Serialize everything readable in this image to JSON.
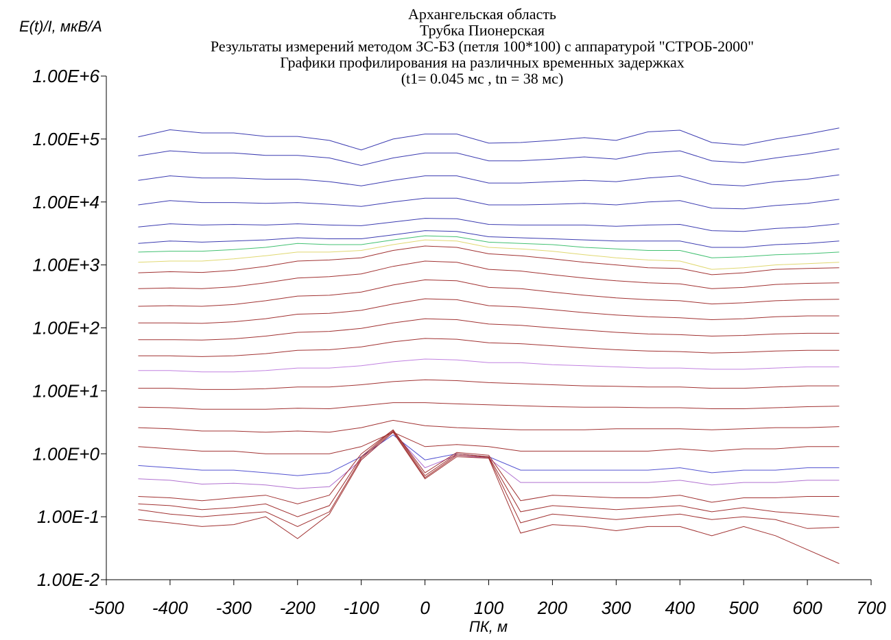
{
  "chart_data": {
    "type": "line",
    "title": [
      "Архангельская область",
      "Трубка Пионерская",
      "Результаты измерений методом ЗС-БЗ (петля 100*100) с аппаратурой \"СТРОБ-2000\"",
      "Графики профилирования на различных временных задержках",
      "(t1= 0.045 мс , tn = 38 мс)"
    ],
    "y_label": "E(t)/I, мкВ/А",
    "x_label": "ПК, м",
    "log_y": true,
    "xlim": [
      -500,
      700
    ],
    "xticks": [
      -500,
      -400,
      -300,
      -200,
      -100,
      0,
      100,
      200,
      300,
      400,
      500,
      600,
      700
    ],
    "ylim": [
      0.01,
      1000000
    ],
    "yticks": [
      {
        "value": 0.01,
        "label": "1.00E-2"
      },
      {
        "value": 0.1,
        "label": "1.00E-1"
      },
      {
        "value": 1,
        "label": "1.00E+0"
      },
      {
        "value": 10,
        "label": "1.00E+1"
      },
      {
        "value": 100,
        "label": "1.00E+2"
      },
      {
        "value": 1000,
        "label": "1.00E+3"
      },
      {
        "value": 10000,
        "label": "1.00E+4"
      },
      {
        "value": 100000,
        "label": "1.00E+5"
      },
      {
        "value": 1000000,
        "label": "1.00E+6"
      }
    ],
    "x": [
      -450,
      -400,
      -350,
      -300,
      -250,
      -200,
      -150,
      -100,
      -50,
      0,
      50,
      100,
      150,
      200,
      250,
      300,
      350,
      400,
      450,
      500,
      550,
      600,
      650
    ],
    "series": [
      {
        "color": "#3a3ab0",
        "values": [
          108000,
          140000,
          125000,
          125000,
          110000,
          110000,
          95000,
          67000,
          100000,
          120000,
          120000,
          86000,
          88000,
          95000,
          105000,
          95000,
          130000,
          138000,
          88000,
          80000,
          100000,
          120000,
          150000
        ]
      },
      {
        "color": "#3a3ab0",
        "values": [
          54000,
          65000,
          60000,
          60000,
          55000,
          55000,
          50000,
          38000,
          50000,
          60000,
          60000,
          45000,
          45000,
          48000,
          52000,
          48000,
          60000,
          65000,
          45000,
          42000,
          50000,
          58000,
          70000
        ]
      },
      {
        "color": "#3a3ab0",
        "values": [
          22000,
          26000,
          24000,
          24000,
          23000,
          23000,
          21000,
          18000,
          22000,
          26000,
          26000,
          20000,
          20000,
          21000,
          22000,
          21000,
          24000,
          26000,
          19000,
          18000,
          21000,
          23000,
          27000
        ]
      },
      {
        "color": "#3a3ab0",
        "values": [
          9000,
          10500,
          9800,
          9800,
          9500,
          9800,
          9200,
          8500,
          10000,
          11500,
          11500,
          9000,
          9000,
          9200,
          9500,
          9000,
          10000,
          10500,
          8000,
          7800,
          8800,
          9500,
          11000
        ]
      },
      {
        "color": "#3a3ab0",
        "values": [
          4000,
          4500,
          4300,
          4400,
          4300,
          4500,
          4300,
          4200,
          4800,
          5500,
          5400,
          4400,
          4300,
          4300,
          4300,
          4100,
          4300,
          4400,
          3500,
          3400,
          3800,
          4000,
          4500
        ]
      },
      {
        "color": "#3a3ab0",
        "values": [
          2200,
          2400,
          2300,
          2400,
          2500,
          2700,
          2600,
          2600,
          3000,
          3500,
          3400,
          2800,
          2700,
          2600,
          2500,
          2400,
          2400,
          2400,
          1900,
          1900,
          2100,
          2200,
          2400
        ]
      },
      {
        "color": "#40c070",
        "values": [
          1600,
          1650,
          1650,
          1750,
          1900,
          2200,
          2100,
          2100,
          2500,
          2900,
          2800,
          2300,
          2200,
          2100,
          1900,
          1800,
          1700,
          1700,
          1300,
          1350,
          1450,
          1500,
          1600
        ]
      },
      {
        "color": "#e0d870",
        "values": [
          1100,
          1150,
          1150,
          1250,
          1400,
          1600,
          1600,
          1700,
          2100,
          2500,
          2400,
          1900,
          1800,
          1650,
          1450,
          1300,
          1200,
          1150,
          850,
          900,
          1000,
          1050,
          1100
        ]
      },
      {
        "color": "#a03030",
        "values": [
          750,
          780,
          760,
          820,
          950,
          1150,
          1200,
          1300,
          1700,
          2000,
          1900,
          1500,
          1400,
          1250,
          1100,
          1000,
          900,
          880,
          700,
          750,
          850,
          880,
          900
        ]
      },
      {
        "color": "#a03030",
        "values": [
          420,
          430,
          420,
          450,
          520,
          620,
          650,
          720,
          950,
          1150,
          1100,
          850,
          800,
          700,
          620,
          560,
          520,
          500,
          420,
          440,
          490,
          510,
          520
        ]
      },
      {
        "color": "#a03030",
        "values": [
          220,
          225,
          220,
          235,
          270,
          320,
          330,
          370,
          480,
          580,
          560,
          440,
          420,
          370,
          330,
          300,
          280,
          270,
          240,
          250,
          270,
          280,
          285
        ]
      },
      {
        "color": "#a03030",
        "values": [
          120,
          120,
          118,
          125,
          140,
          165,
          170,
          190,
          240,
          290,
          280,
          225,
          215,
          195,
          175,
          160,
          150,
          145,
          135,
          140,
          150,
          155,
          155
        ]
      },
      {
        "color": "#a03030",
        "values": [
          65,
          65,
          64,
          67,
          74,
          85,
          88,
          98,
          120,
          140,
          135,
          115,
          110,
          100,
          92,
          85,
          80,
          78,
          74,
          76,
          80,
          82,
          82
        ]
      },
      {
        "color": "#a03030",
        "values": [
          36,
          36,
          35,
          36,
          39,
          44,
          45,
          50,
          60,
          68,
          66,
          58,
          56,
          52,
          48,
          45,
          43,
          42,
          40,
          41,
          43,
          44,
          44
        ]
      },
      {
        "color": "#c080e0",
        "values": [
          21,
          21,
          20,
          20,
          21,
          23,
          23,
          25,
          29,
          32,
          31,
          28,
          28,
          26,
          25,
          24,
          23,
          23,
          22,
          22,
          23,
          24,
          24
        ]
      },
      {
        "color": "#a03030",
        "values": [
          11,
          11,
          10.5,
          10.5,
          10.8,
          11.5,
          11.5,
          12.5,
          14,
          15,
          14.5,
          13.5,
          13,
          12.5,
          12,
          11.8,
          11.5,
          11.5,
          11,
          11,
          11.5,
          12,
          12
        ]
      },
      {
        "color": "#a03030",
        "values": [
          5.5,
          5.4,
          5.1,
          5.1,
          5.1,
          5.3,
          5.2,
          5.8,
          6.5,
          6.5,
          6.2,
          6,
          5.8,
          5.6,
          5.5,
          5.5,
          5.4,
          5.4,
          5.2,
          5.2,
          5.4,
          5.6,
          5.7
        ]
      },
      {
        "color": "#a03030",
        "values": [
          2.6,
          2.5,
          2.3,
          2.3,
          2.2,
          2.3,
          2.2,
          2.6,
          3.4,
          2.8,
          2.6,
          2.5,
          2.4,
          2.4,
          2.4,
          2.5,
          2.5,
          2.5,
          2.4,
          2.5,
          2.6,
          2.6,
          2.7
        ]
      },
      {
        "color": "#a03030",
        "values": [
          1.3,
          1.2,
          1.1,
          1.1,
          1,
          1,
          1,
          1.3,
          2.2,
          1.3,
          1.4,
          1.3,
          1.1,
          1.1,
          1.1,
          1.1,
          1.1,
          1.2,
          1.1,
          1.2,
          1.2,
          1.3,
          1.3
        ]
      },
      {
        "color": "#5050d0",
        "values": [
          0.65,
          0.6,
          0.55,
          0.55,
          0.5,
          0.45,
          0.5,
          0.9,
          2,
          0.8,
          1,
          0.9,
          0.55,
          0.55,
          0.55,
          0.55,
          0.55,
          0.6,
          0.5,
          0.55,
          0.55,
          0.6,
          0.6
        ]
      },
      {
        "color": "#b070d0",
        "values": [
          0.4,
          0.38,
          0.33,
          0.34,
          0.32,
          0.28,
          0.3,
          0.8,
          2.2,
          0.6,
          0.95,
          0.85,
          0.35,
          0.35,
          0.35,
          0.35,
          0.35,
          0.38,
          0.32,
          0.35,
          0.35,
          0.38,
          0.38
        ]
      },
      {
        "color": "#a03030",
        "values": [
          0.21,
          0.2,
          0.18,
          0.2,
          0.22,
          0.16,
          0.22,
          1,
          2.4,
          0.5,
          1.05,
          0.95,
          0.18,
          0.22,
          0.21,
          0.2,
          0.2,
          0.22,
          0.17,
          0.2,
          0.2,
          0.21,
          0.21
        ]
      },
      {
        "color": "#a03030",
        "values": [
          0.16,
          0.15,
          0.13,
          0.14,
          0.16,
          0.1,
          0.15,
          0.9,
          2.4,
          0.45,
          1,
          0.9,
          0.12,
          0.15,
          0.14,
          0.13,
          0.14,
          0.15,
          0.12,
          0.14,
          0.12,
          0.11,
          0.1
        ]
      },
      {
        "color": "#a03030",
        "values": [
          0.13,
          0.11,
          0.1,
          0.11,
          0.12,
          0.07,
          0.12,
          0.85,
          2.3,
          0.42,
          0.95,
          0.88,
          0.08,
          0.11,
          0.1,
          0.09,
          0.1,
          0.11,
          0.09,
          0.1,
          0.09,
          0.065,
          0.068
        ]
      },
      {
        "color": "#a03030",
        "values": [
          0.09,
          0.08,
          0.07,
          0.075,
          0.1,
          0.045,
          0.11,
          0.8,
          2.2,
          0.4,
          0.9,
          0.85,
          0.055,
          0.075,
          0.07,
          0.06,
          0.07,
          0.07,
          0.05,
          0.07,
          0.05,
          0.03,
          0.018
        ]
      }
    ]
  }
}
